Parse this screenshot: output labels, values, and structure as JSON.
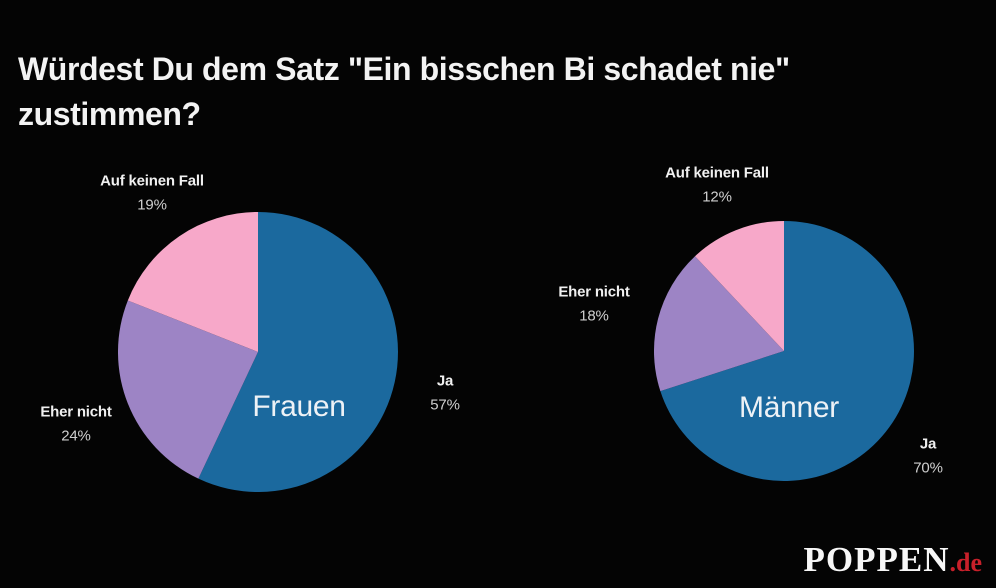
{
  "title": {
    "line1": "Würdest Du dem Satz \"Ein bisschen Bi schadet nie\"",
    "line2": "zustimmen?"
  },
  "chart_data": [
    {
      "type": "pie",
      "group_label": "Frauen",
      "categories": [
        "Ja",
        "Eher nicht",
        "Auf keinen Fall"
      ],
      "values": [
        57,
        24,
        19
      ],
      "unit": "%",
      "start_angle_deg": 0,
      "direction": "clockwise",
      "legend_position": "labels-around-pie",
      "slices": [
        {
          "name": "Ja",
          "value": 57,
          "display": "57%",
          "color": "#1b699e"
        },
        {
          "name": "Eher nicht",
          "value": 24,
          "display": "24%",
          "color": "#9d84c5"
        },
        {
          "name": "Auf keinen Fall",
          "value": 19,
          "display": "19%",
          "color": "#f7a8c9"
        }
      ]
    },
    {
      "type": "pie",
      "group_label": "Männer",
      "categories": [
        "Ja",
        "Eher nicht",
        "Auf keinen Fall"
      ],
      "values": [
        70,
        18,
        12
      ],
      "unit": "%",
      "start_angle_deg": 0,
      "direction": "clockwise",
      "legend_position": "labels-around-pie",
      "slices": [
        {
          "name": "Ja",
          "value": 70,
          "display": "70%",
          "color": "#1b699e"
        },
        {
          "name": "Eher nicht",
          "value": 18,
          "display": "18%",
          "color": "#9d84c5"
        },
        {
          "name": "Auf keinen Fall",
          "value": 12,
          "display": "12%",
          "color": "#f7a8c9"
        }
      ]
    }
  ],
  "logo": {
    "brand": "POPPEN",
    "tld": ".de",
    "tld_color": "#c8202a"
  },
  "colors": {
    "background": "#040404",
    "ja": "#1b699e",
    "eher_nicht": "#9d84c5",
    "auf_keinen_fall": "#f7a8c9",
    "title_text": "#f3f3f3",
    "label_value_text": "#cfcfcf"
  }
}
